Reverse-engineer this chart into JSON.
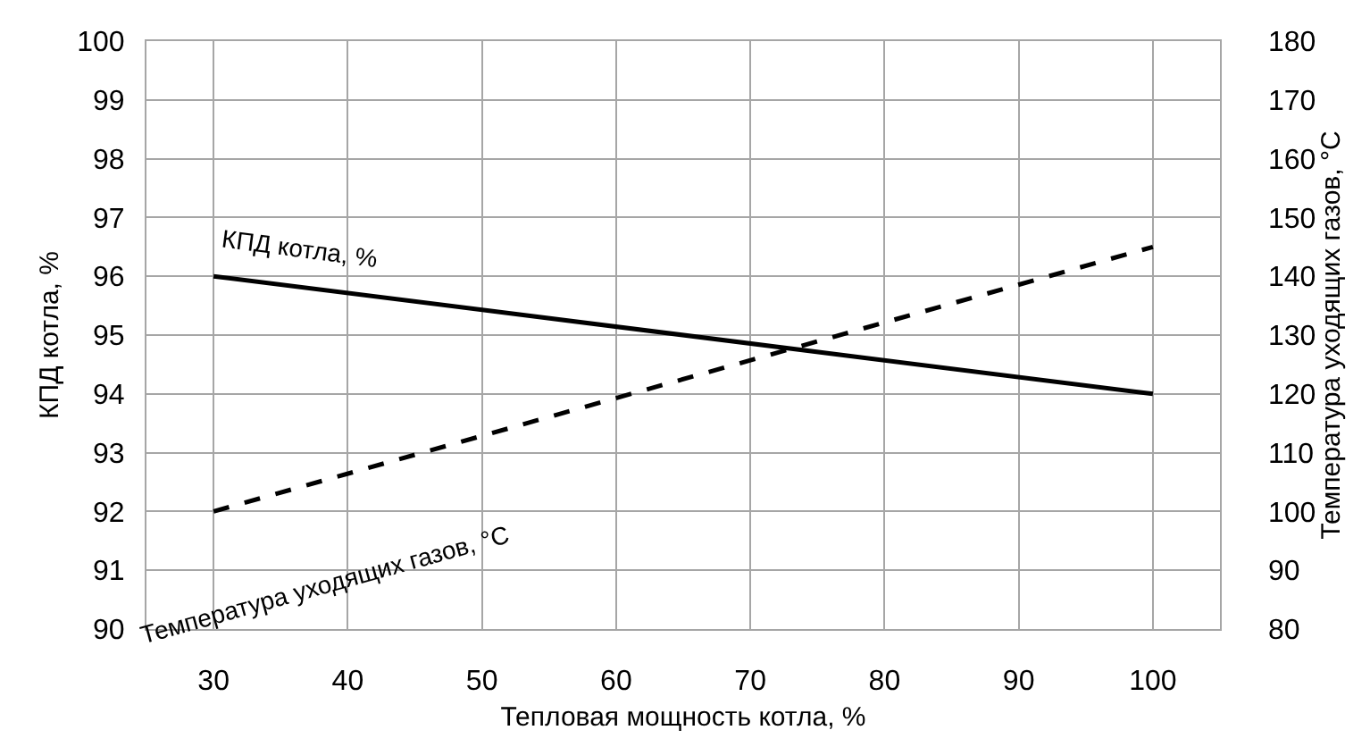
{
  "chart_data": {
    "type": "line",
    "xlabel": "Тепловая мощность котла, %",
    "ylabel": "КПД котла, %",
    "y2label": "Температура уходящих газов, °C",
    "x": [
      30,
      100
    ],
    "series": [
      {
        "name": "КПД котла, %",
        "color": "#000000",
        "values": [
          96,
          94
        ],
        "line_style": "solid"
      },
      {
        "name": "Температура уходящих газов, °C",
        "color": "#000000",
        "values": [
          100,
          145
        ],
        "axis": "y2",
        "line_style": "dashed"
      }
    ],
    "xlim": [
      25,
      105
    ],
    "xticks": [
      30,
      40,
      50,
      60,
      70,
      80,
      90,
      100
    ],
    "ylim": [
      90,
      100
    ],
    "yticks": [
      90,
      91,
      92,
      93,
      94,
      95,
      96,
      97,
      98,
      99,
      100
    ],
    "y2lim": [
      80,
      180
    ],
    "y2ticks": [
      80,
      90,
      100,
      110,
      120,
      130,
      140,
      150,
      160,
      170,
      180
    ],
    "grid": true,
    "legend": false,
    "marker": "none"
  }
}
